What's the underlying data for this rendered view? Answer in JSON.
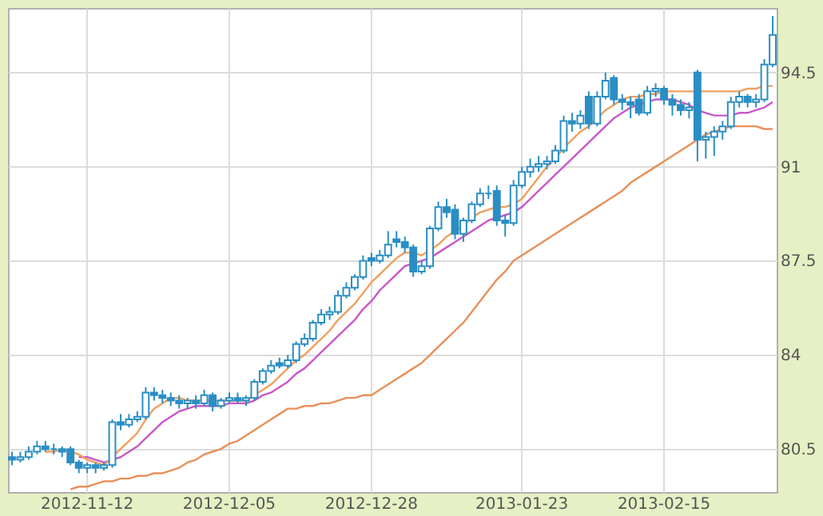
{
  "chart_data": {
    "type": "candlestick",
    "categories": [
      null,
      null,
      null,
      null,
      null,
      null,
      null,
      null,
      null,
      "2012-11-12",
      null,
      null,
      null,
      null,
      null,
      null,
      null,
      null,
      null,
      null,
      null,
      null,
      null,
      null,
      null,
      null,
      "2012-12-05",
      null,
      null,
      null,
      null,
      null,
      null,
      null,
      null,
      null,
      null,
      null,
      null,
      null,
      null,
      null,
      null,
      "2012-12-28",
      null,
      null,
      null,
      null,
      null,
      null,
      null,
      null,
      null,
      null,
      null,
      null,
      null,
      null,
      null,
      null,
      null,
      "2013-01-23",
      null,
      null,
      null,
      null,
      null,
      null,
      null,
      null,
      null,
      null,
      null,
      null,
      null,
      null,
      null,
      null,
      "2013-02-15",
      null,
      null,
      null,
      null,
      null,
      null,
      null,
      null,
      null,
      null,
      null,
      null,
      null
    ],
    "ylim": [
      78.9,
      96.9
    ],
    "yticks": [
      80.5,
      84,
      87.5,
      91,
      94.5
    ],
    "grid": true,
    "series": [
      {
        "type": "line",
        "color": "#c858c8",
        "values": [
          null,
          null,
          null,
          null,
          null,
          null,
          null,
          null,
          80.2,
          80.2,
          80.1,
          80.0,
          80.1,
          80.2,
          80.4,
          80.6,
          80.9,
          81.2,
          81.5,
          81.7,
          81.9,
          82.0,
          82.1,
          82.1,
          82.1,
          82.1,
          82.2,
          82.2,
          82.2,
          82.3,
          82.5,
          82.6,
          82.8,
          83.0,
          83.3,
          83.5,
          83.8,
          84.1,
          84.4,
          84.7,
          85.0,
          85.3,
          85.7,
          86.0,
          86.4,
          86.7,
          87.0,
          87.3,
          87.4,
          87.5,
          87.6,
          87.8,
          88.0,
          88.2,
          88.4,
          88.6,
          88.8,
          89.0,
          89.1,
          89.2,
          89.3,
          89.5,
          89.8,
          90.1,
          90.4,
          90.7,
          91.0,
          91.3,
          91.6,
          91.9,
          92.2,
          92.5,
          92.8,
          93.0,
          93.2,
          93.3,
          93.4,
          93.5,
          93.5,
          93.5,
          93.4,
          93.3,
          93.1,
          93.0,
          92.9,
          92.9,
          92.9,
          93.0,
          93.0,
          93.1,
          93.2,
          93.4
        ]
      },
      {
        "type": "line",
        "color": "#f0a060",
        "values": [
          null,
          null,
          null,
          null,
          80.4,
          80.4,
          80.5,
          80.4,
          80.3,
          80.1,
          80.0,
          79.9,
          80.2,
          80.5,
          80.8,
          81.1,
          81.6,
          82.0,
          82.2,
          82.4,
          82.4,
          82.3,
          82.3,
          82.3,
          82.3,
          82.3,
          82.3,
          82.3,
          82.3,
          82.5,
          82.7,
          82.9,
          83.2,
          83.5,
          83.8,
          84.0,
          84.3,
          84.6,
          84.9,
          85.3,
          85.6,
          85.9,
          86.3,
          86.7,
          87.0,
          87.3,
          87.6,
          87.8,
          87.8,
          87.7,
          87.9,
          88.1,
          88.4,
          88.6,
          88.8,
          89.1,
          89.3,
          89.4,
          89.5,
          89.5,
          89.6,
          89.8,
          90.2,
          90.6,
          91.0,
          91.3,
          91.7,
          92.0,
          92.3,
          92.5,
          92.8,
          93.1,
          93.3,
          93.5,
          93.6,
          93.6,
          93.7,
          93.7,
          93.8,
          93.8,
          93.8,
          93.8,
          93.8,
          93.8,
          93.8,
          93.8,
          93.8,
          93.8,
          93.9,
          93.9,
          94.0,
          94.0
        ]
      },
      {
        "type": "line",
        "color": "#e8905a",
        "values": [
          null,
          null,
          null,
          null,
          null,
          null,
          null,
          79.0,
          79.1,
          79.1,
          79.2,
          79.3,
          79.3,
          79.4,
          79.4,
          79.5,
          79.5,
          79.6,
          79.6,
          79.7,
          79.8,
          80.0,
          80.1,
          80.3,
          80.4,
          80.5,
          80.7,
          80.8,
          81.0,
          81.2,
          81.4,
          81.6,
          81.8,
          82.0,
          82.0,
          82.1,
          82.1,
          82.2,
          82.2,
          82.3,
          82.4,
          82.4,
          82.5,
          82.5,
          82.7,
          82.9,
          83.1,
          83.3,
          83.5,
          83.7,
          84.0,
          84.3,
          84.6,
          84.9,
          85.2,
          85.6,
          86.0,
          86.4,
          86.8,
          87.1,
          87.5,
          87.7,
          87.9,
          88.1,
          88.3,
          88.5,
          88.7,
          88.9,
          89.1,
          89.3,
          89.5,
          89.7,
          89.9,
          90.1,
          90.4,
          90.6,
          90.8,
          91.0,
          91.2,
          91.4,
          91.6,
          91.8,
          92.0,
          92.2,
          92.3,
          92.4,
          92.5,
          92.5,
          92.5,
          92.5,
          92.4,
          92.4
        ]
      },
      {
        "color": "#2a8ec4",
        "ohlc": [
          [
            80.2,
            80.4,
            79.9,
            80.1
          ],
          [
            80.1,
            80.4,
            80.0,
            80.2
          ],
          [
            80.2,
            80.6,
            80.1,
            80.4
          ],
          [
            80.4,
            80.8,
            80.3,
            80.6
          ],
          [
            80.6,
            80.8,
            80.4,
            80.5
          ],
          [
            80.5,
            80.7,
            80.3,
            80.5
          ],
          [
            80.5,
            80.6,
            80.2,
            80.4
          ],
          [
            80.5,
            80.6,
            79.9,
            80.0
          ],
          [
            80.0,
            80.1,
            79.6,
            79.8
          ],
          [
            79.8,
            80.0,
            79.6,
            79.9
          ],
          [
            79.9,
            80.0,
            79.6,
            79.8
          ],
          [
            79.8,
            80.0,
            79.7,
            79.9
          ],
          [
            79.9,
            81.6,
            79.8,
            81.5
          ],
          [
            81.5,
            81.8,
            81.2,
            81.4
          ],
          [
            81.4,
            81.8,
            81.3,
            81.6
          ],
          [
            81.6,
            81.9,
            81.5,
            81.7
          ],
          [
            81.7,
            82.8,
            81.6,
            82.6
          ],
          [
            82.6,
            82.8,
            82.3,
            82.5
          ],
          [
            82.5,
            82.7,
            82.2,
            82.4
          ],
          [
            82.4,
            82.6,
            82.1,
            82.3
          ],
          [
            82.3,
            82.5,
            82.0,
            82.2
          ],
          [
            82.2,
            82.4,
            82.0,
            82.3
          ],
          [
            82.3,
            82.5,
            82.0,
            82.2
          ],
          [
            82.2,
            82.7,
            82.1,
            82.5
          ],
          [
            82.5,
            82.6,
            81.9,
            82.1
          ],
          [
            82.1,
            82.4,
            82.0,
            82.3
          ],
          [
            82.3,
            82.6,
            82.2,
            82.4
          ],
          [
            82.4,
            82.6,
            82.2,
            82.3
          ],
          [
            82.3,
            82.5,
            82.1,
            82.4
          ],
          [
            82.4,
            83.1,
            82.3,
            83.0
          ],
          [
            83.0,
            83.5,
            82.9,
            83.4
          ],
          [
            83.4,
            83.8,
            83.3,
            83.6
          ],
          [
            83.7,
            83.9,
            83.5,
            83.6
          ],
          [
            83.6,
            84.0,
            83.5,
            83.8
          ],
          [
            83.8,
            84.5,
            83.7,
            84.4
          ],
          [
            84.4,
            84.8,
            84.3,
            84.6
          ],
          [
            84.6,
            85.3,
            84.5,
            85.2
          ],
          [
            85.2,
            85.7,
            85.1,
            85.5
          ],
          [
            85.5,
            85.8,
            85.3,
            85.6
          ],
          [
            85.6,
            86.4,
            85.5,
            86.2
          ],
          [
            86.2,
            86.7,
            86.1,
            86.5
          ],
          [
            86.5,
            87.0,
            86.4,
            86.9
          ],
          [
            86.9,
            87.7,
            86.8,
            87.5
          ],
          [
            87.6,
            87.8,
            87.3,
            87.5
          ],
          [
            87.5,
            87.9,
            87.4,
            87.7
          ],
          [
            87.7,
            88.6,
            87.6,
            88.1
          ],
          [
            88.3,
            88.6,
            88.0,
            88.2
          ],
          [
            88.2,
            88.4,
            87.8,
            88.0
          ],
          [
            88.0,
            88.1,
            86.9,
            87.1
          ],
          [
            87.1,
            87.5,
            87.0,
            87.3
          ],
          [
            87.3,
            88.8,
            87.2,
            88.7
          ],
          [
            88.7,
            89.7,
            88.6,
            89.5
          ],
          [
            89.5,
            89.8,
            89.1,
            89.3
          ],
          [
            89.4,
            89.6,
            88.3,
            88.5
          ],
          [
            88.5,
            89.1,
            88.2,
            89.0
          ],
          [
            89.0,
            89.7,
            88.9,
            89.6
          ],
          [
            89.6,
            90.2,
            89.5,
            90.0
          ],
          [
            90.0,
            90.3,
            89.8,
            90.0
          ],
          [
            90.1,
            90.3,
            88.8,
            89.0
          ],
          [
            89.0,
            89.2,
            88.4,
            88.9
          ],
          [
            88.9,
            90.5,
            88.8,
            90.3
          ],
          [
            90.3,
            91.0,
            90.2,
            90.8
          ],
          [
            90.8,
            91.3,
            90.6,
            91.0
          ],
          [
            91.0,
            91.4,
            90.8,
            91.1
          ],
          [
            91.1,
            91.4,
            90.9,
            91.2
          ],
          [
            91.2,
            91.8,
            91.1,
            91.6
          ],
          [
            91.6,
            92.9,
            91.5,
            92.7
          ],
          [
            92.7,
            93.0,
            92.3,
            92.6
          ],
          [
            92.6,
            93.1,
            92.4,
            92.9
          ],
          [
            93.6,
            93.8,
            92.4,
            92.6
          ],
          [
            92.6,
            93.8,
            92.5,
            93.6
          ],
          [
            93.6,
            94.5,
            93.5,
            94.2
          ],
          [
            94.3,
            94.4,
            93.3,
            93.5
          ],
          [
            93.5,
            93.7,
            93.1,
            93.4
          ],
          [
            93.4,
            93.6,
            92.8,
            93.3
          ],
          [
            93.5,
            93.7,
            92.9,
            93.0
          ],
          [
            93.0,
            94.0,
            92.9,
            93.8
          ],
          [
            93.8,
            94.1,
            93.6,
            93.9
          ],
          [
            93.9,
            94.0,
            93.3,
            93.5
          ],
          [
            93.5,
            93.7,
            92.9,
            93.3
          ],
          [
            93.3,
            93.5,
            92.9,
            93.1
          ],
          [
            93.1,
            93.4,
            92.8,
            93.2
          ],
          [
            94.5,
            94.6,
            91.2,
            92.0
          ],
          [
            92.0,
            92.3,
            91.3,
            92.1
          ],
          [
            92.1,
            92.5,
            91.4,
            92.3
          ],
          [
            92.3,
            92.7,
            92.0,
            92.5
          ],
          [
            92.5,
            93.6,
            92.4,
            93.4
          ],
          [
            93.4,
            93.8,
            93.2,
            93.6
          ],
          [
            93.6,
            93.7,
            93.2,
            93.4
          ],
          [
            93.4,
            93.7,
            93.2,
            93.5
          ],
          [
            93.5,
            95.0,
            93.4,
            94.8
          ],
          [
            94.8,
            96.6,
            94.7,
            95.9
          ]
        ]
      }
    ]
  }
}
